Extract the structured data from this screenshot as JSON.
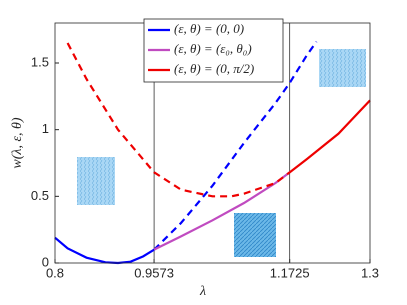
{
  "chart_data": {
    "type": "line",
    "xlabel": "λ",
    "ylabel": "w(λ, ε, θ)",
    "xlim": [
      0.8,
      1.3
    ],
    "ylim": [
      0,
      1.8
    ],
    "xticks": [
      0.8,
      0.9573,
      1.1725,
      1.3
    ],
    "yticks": [
      0,
      0.5,
      1,
      1.5
    ],
    "vlines": [
      0.9573,
      1.1725
    ],
    "legend": "upper center",
    "series": [
      {
        "name": "(ε, θ) = (0, 0)",
        "color": "#0000ff",
        "segments": [
          {
            "style": "solid",
            "x": [
              0.8,
              0.82,
              0.85,
              0.88,
              0.9,
              0.92,
              0.94,
              0.9573
            ],
            "values": [
              0.19,
              0.11,
              0.04,
              0.005,
              0,
              0.01,
              0.05,
              0.1
            ]
          },
          {
            "style": "dashed",
            "x": [
              0.9573,
              1.0,
              1.05,
              1.1,
              1.15,
              1.1725,
              1.2,
              1.215
            ],
            "values": [
              0.1,
              0.3,
              0.58,
              0.9,
              1.2,
              1.35,
              1.56,
              1.66
            ]
          }
        ]
      },
      {
        "name": "(ε, θ) = (ε₀, θ₀)",
        "color": "#c04bc0",
        "segments": [
          {
            "style": "solid",
            "x": [
              0.9573,
              1.0,
              1.05,
              1.1,
              1.15,
              1.1725
            ],
            "values": [
              0.1,
              0.2,
              0.32,
              0.45,
              0.6,
              0.68
            ]
          }
        ]
      },
      {
        "name": "(ε, θ) = (0, π/2)",
        "color": "#ee0000",
        "segments": [
          {
            "style": "dashed",
            "x": [
              0.82,
              0.85,
              0.9,
              0.9573,
              1.0,
              1.05,
              1.08,
              1.1,
              1.15,
              1.1725
            ],
            "values": [
              1.65,
              1.38,
              1.0,
              0.68,
              0.55,
              0.5,
              0.5,
              0.52,
              0.6,
              0.68
            ]
          },
          {
            "style": "solid",
            "x": [
              1.1725,
              1.2,
              1.25,
              1.3
            ],
            "values": [
              0.68,
              0.78,
              0.97,
              1.22
            ]
          }
        ]
      }
    ]
  }
}
